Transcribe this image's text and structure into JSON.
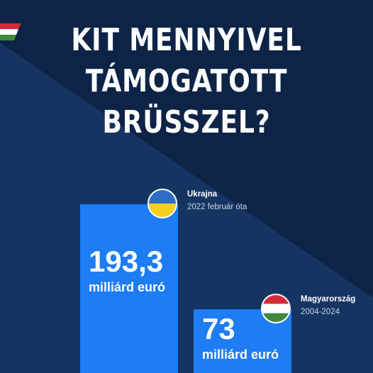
{
  "title_lines": [
    "KIT MENNYIVEL",
    "TÁMOGATOTT",
    "BRÜSSZEL?"
  ],
  "colors": {
    "background": "#0d2447",
    "background_stripe": "#163462",
    "bar": "#1e7cf5",
    "text": "#ffffff"
  },
  "chart_data": {
    "type": "bar",
    "categories": [
      "Ukrajna",
      "Magyarország"
    ],
    "category_subtitles": [
      "2022 február óta",
      "2004-2024"
    ],
    "values": [
      193.3,
      73
    ],
    "value_labels": [
      "193,3",
      "73"
    ],
    "unit_label": "milliárd euró",
    "flag_icons": [
      "ukraine-flag-icon",
      "hungary-flag-icon"
    ],
    "title": "",
    "xlabel": "",
    "ylabel": ""
  }
}
